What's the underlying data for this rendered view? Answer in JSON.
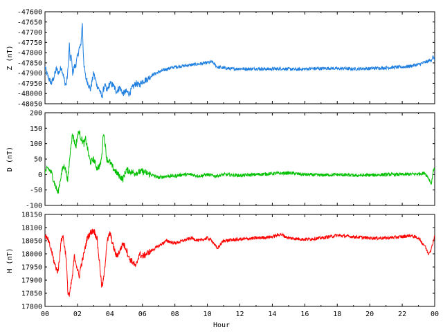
{
  "chart_data": [
    {
      "type": "line",
      "id": "Z",
      "ylabel": "Z (nT)",
      "ylim": [
        -48050,
        -47600
      ],
      "yticks": [
        -48050,
        -48000,
        -47950,
        -47900,
        -47850,
        -47800,
        -47750,
        -47700,
        -47650,
        -47600
      ],
      "series": [
        {
          "color": "#1f7fe0",
          "x": [
            0,
            0.1,
            0.25,
            0.4,
            0.55,
            0.7,
            0.85,
            1.0,
            1.1,
            1.2,
            1.3,
            1.4,
            1.5,
            1.55,
            1.6,
            1.7,
            1.8,
            1.9,
            2.0,
            2.1,
            2.2,
            2.3,
            2.35,
            2.4,
            2.5,
            2.6,
            2.8,
            3.0,
            3.2,
            3.4,
            3.5,
            3.6,
            3.7,
            3.8,
            3.9,
            4.0,
            4.2,
            4.4,
            4.6,
            4.8,
            5.0,
            5.2,
            5.4,
            5.6,
            5.8,
            6.0,
            6.3,
            6.6,
            7.0,
            7.5,
            8.0,
            8.5,
            9.0,
            9.5,
            10.0,
            10.3,
            10.6,
            11.0,
            11.5,
            12.0,
            12.5,
            13.0,
            13.5,
            14.0,
            14.5,
            15.0,
            15.5,
            16.0,
            16.5,
            17.0,
            17.5,
            18.0,
            18.5,
            19.0,
            19.5,
            20.0,
            20.5,
            21.0,
            21.5,
            22.0,
            22.5,
            23.0,
            23.3,
            23.6,
            23.8,
            23.9,
            24.0
          ],
          "y": [
            -47870,
            -47900,
            -47930,
            -47950,
            -47920,
            -47880,
            -47900,
            -47870,
            -47900,
            -47940,
            -47960,
            -47900,
            -47760,
            -47850,
            -47800,
            -47900,
            -47870,
            -47860,
            -47820,
            -47780,
            -47770,
            -47650,
            -47780,
            -47860,
            -47920,
            -47940,
            -47980,
            -47900,
            -47960,
            -47990,
            -48020,
            -47980,
            -47960,
            -47990,
            -47970,
            -47950,
            -47960,
            -47990,
            -47970,
            -48000,
            -47990,
            -48000,
            -47970,
            -47950,
            -47960,
            -47940,
            -47930,
            -47910,
            -47895,
            -47880,
            -47870,
            -47865,
            -47860,
            -47855,
            -47850,
            -47845,
            -47870,
            -47875,
            -47880,
            -47878,
            -47880,
            -47878,
            -47880,
            -47880,
            -47878,
            -47880,
            -47882,
            -47880,
            -47878,
            -47878,
            -47876,
            -47878,
            -47878,
            -47880,
            -47878,
            -47878,
            -47876,
            -47874,
            -47872,
            -47870,
            -47866,
            -47858,
            -47850,
            -47842,
            -47835,
            -47820,
            -47835
          ]
        }
      ]
    },
    {
      "type": "line",
      "id": "D",
      "ylabel": "D (nT)",
      "ylim": [
        -100,
        200
      ],
      "yticks": [
        -100,
        -50,
        0,
        50,
        100,
        150,
        200
      ],
      "series": [
        {
          "color": "#00c000",
          "x": [
            0,
            0.2,
            0.4,
            0.6,
            0.8,
            1.0,
            1.1,
            1.2,
            1.3,
            1.4,
            1.5,
            1.6,
            1.7,
            1.8,
            1.9,
            2.0,
            2.1,
            2.2,
            2.3,
            2.4,
            2.5,
            2.6,
            2.7,
            2.8,
            3.0,
            3.2,
            3.4,
            3.5,
            3.6,
            3.7,
            3.8,
            4.0,
            4.2,
            4.5,
            4.8,
            5.0,
            5.5,
            6.0,
            6.5,
            7.0,
            7.5,
            8.0,
            8.5,
            9.0,
            9.5,
            10.0,
            10.5,
            11.0,
            12.0,
            13.0,
            14.0,
            15.0,
            16.0,
            17.0,
            18.0,
            19.0,
            20.0,
            21.0,
            22.0,
            23.0,
            23.4,
            23.6,
            23.8,
            23.9,
            24.0
          ],
          "y": [
            10,
            20,
            5,
            -30,
            -60,
            0,
            20,
            30,
            10,
            -20,
            40,
            100,
            130,
            110,
            90,
            125,
            140,
            120,
            110,
            100,
            115,
            90,
            60,
            40,
            50,
            20,
            30,
            60,
            140,
            100,
            50,
            40,
            20,
            0,
            -15,
            15,
            5,
            10,
            0,
            -10,
            -5,
            -5,
            0,
            0,
            -5,
            0,
            -5,
            0,
            -3,
            0,
            3,
            5,
            0,
            -2,
            0,
            -3,
            -2,
            0,
            0,
            2,
            5,
            -10,
            -30,
            10,
            20
          ]
        }
      ]
    },
    {
      "type": "line",
      "id": "H",
      "xlabel": "Hour",
      "ylabel": "H (nT)",
      "ylim": [
        17800,
        18150
      ],
      "yticks": [
        17800,
        17850,
        17900,
        17950,
        18000,
        18050,
        18100,
        18150
      ],
      "xlim": [
        0,
        24
      ],
      "xtick_labels": [
        "00",
        "02",
        "04",
        "06",
        "08",
        "10",
        "12",
        "14",
        "16",
        "18",
        "20",
        "22",
        "00"
      ],
      "series": [
        {
          "color": "#ff0000",
          "x": [
            0,
            0.2,
            0.4,
            0.6,
            0.8,
            1.0,
            1.1,
            1.2,
            1.3,
            1.4,
            1.5,
            1.6,
            1.7,
            1.8,
            1.9,
            2.0,
            2.1,
            2.2,
            2.4,
            2.6,
            2.8,
            3.0,
            3.2,
            3.4,
            3.5,
            3.6,
            3.7,
            3.8,
            4.0,
            4.2,
            4.4,
            4.6,
            4.8,
            5.0,
            5.2,
            5.4,
            5.6,
            5.8,
            6.0,
            6.5,
            7.0,
            7.5,
            8.0,
            8.5,
            9.0,
            9.5,
            10.0,
            10.3,
            10.6,
            11.0,
            12.0,
            13.0,
            14.0,
            14.5,
            15.0,
            16.0,
            17.0,
            18.0,
            19.0,
            20.0,
            21.0,
            22.0,
            22.5,
            23.0,
            23.4,
            23.6,
            23.8,
            24.0
          ],
          "y": [
            18070,
            18050,
            18010,
            17960,
            17930,
            18050,
            18070,
            18030,
            17990,
            17860,
            17840,
            17880,
            17920,
            17990,
            17970,
            17940,
            17910,
            17950,
            18000,
            18060,
            18080,
            18090,
            18060,
            17940,
            17870,
            17900,
            17960,
            18040,
            18080,
            18030,
            17990,
            18010,
            18040,
            18020,
            17980,
            17970,
            17950,
            18000,
            17990,
            18010,
            18030,
            18050,
            18040,
            18050,
            18060,
            18050,
            18060,
            18050,
            18020,
            18050,
            18055,
            18060,
            18065,
            18075,
            18060,
            18055,
            18060,
            18070,
            18065,
            18060,
            18060,
            18065,
            18070,
            18060,
            18030,
            18000,
            18020,
            18070
          ]
        }
      ]
    }
  ]
}
